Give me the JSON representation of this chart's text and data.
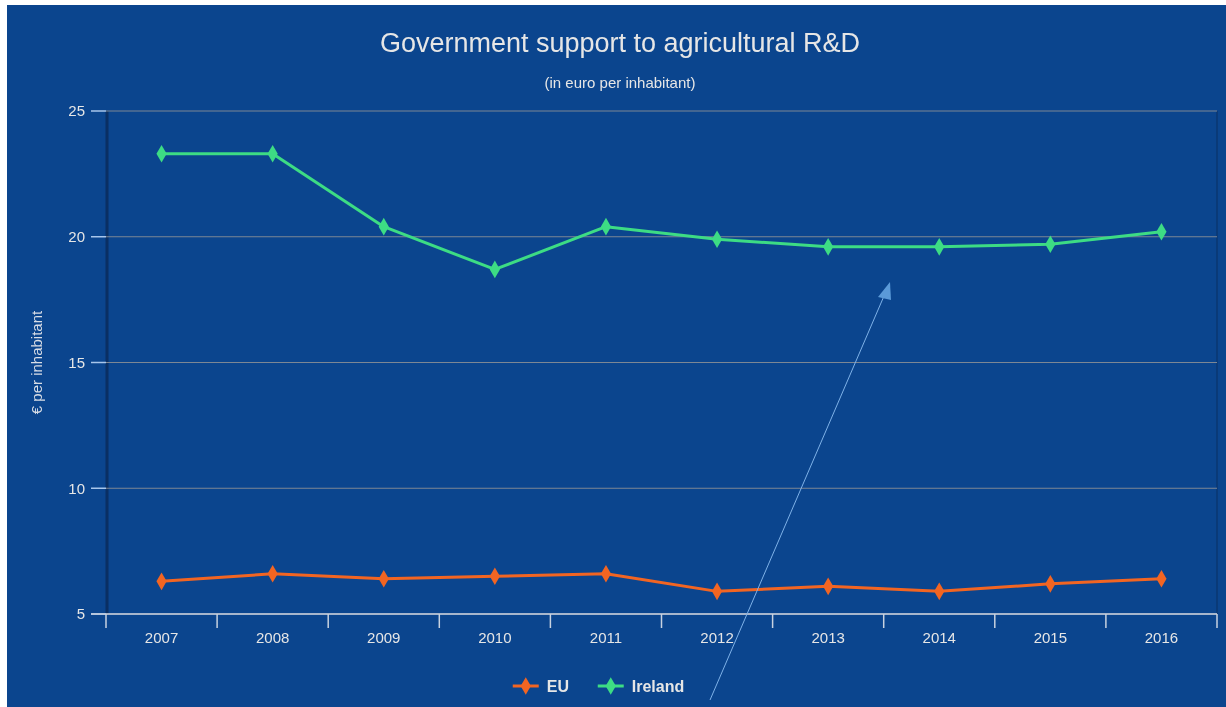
{
  "chart_data": {
    "type": "line",
    "title": "Government support to agricultural R&D",
    "subtitle": "(in euro per inhabitant)",
    "ylabel": "€ per inhabitant",
    "categories": [
      "2007",
      "2008",
      "2009",
      "2010",
      "2011",
      "2012",
      "2013",
      "2014",
      "2015",
      "2016"
    ],
    "series": [
      {
        "name": "EU",
        "color": "#f26522",
        "values": [
          6.3,
          6.6,
          6.4,
          6.5,
          6.6,
          5.9,
          6.1,
          5.9,
          6.2,
          6.4
        ]
      },
      {
        "name": "Ireland",
        "color": "#3ddc84",
        "values": [
          23.3,
          23.3,
          20.4,
          18.7,
          20.4,
          19.9,
          19.6,
          19.6,
          19.7,
          20.2
        ]
      }
    ],
    "ylim": [
      5,
      25
    ],
    "yticks": [
      5,
      10,
      15,
      20,
      25
    ],
    "grid": "y",
    "legend": "bottom",
    "marker": "diamond",
    "line_style": "solid"
  }
}
